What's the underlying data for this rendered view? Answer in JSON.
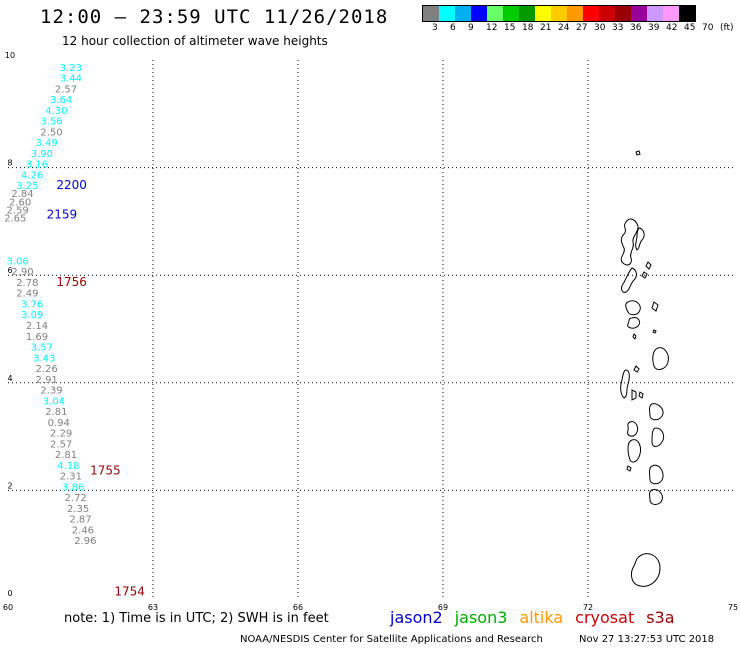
{
  "header": {
    "title": "12:00 – 23:59 UTC 11/26/2018",
    "subtitle": "12 hour collection of altimeter wave heights"
  },
  "legend": {
    "colors": [
      "#808080",
      "#00ffff",
      "#00b0f0",
      "#0000ff",
      "#66ff66",
      "#00cc00",
      "#009900",
      "#ffff00",
      "#ffcc00",
      "#ff9900",
      "#ff0000",
      "#cc0000",
      "#990000",
      "#990099",
      "#cc99ff",
      "#ff99ff",
      "#000000"
    ],
    "labels": [
      "3",
      "6",
      "9",
      "12",
      "15",
      "18",
      "21",
      "24",
      "27",
      "30",
      "33",
      "36",
      "39",
      "42",
      "45",
      "70",
      "(ft)"
    ]
  },
  "chart_data": {
    "type": "scatter",
    "xlim": [
      60,
      75
    ],
    "ylim": [
      0,
      10
    ],
    "xticks": [
      60,
      63,
      66,
      69,
      72,
      75
    ],
    "yticks": [
      0,
      2,
      4,
      6,
      8,
      10
    ],
    "grid": true,
    "track_upper": [
      {
        "x": 61.3,
        "y": 9.8,
        "v": "3.23",
        "c": "#00ffff"
      },
      {
        "x": 61.3,
        "y": 9.6,
        "v": "3.44",
        "c": "#00ffff"
      },
      {
        "x": 61.2,
        "y": 9.4,
        "v": "2.57",
        "c": "#808080"
      },
      {
        "x": 61.1,
        "y": 9.2,
        "v": "3.64",
        "c": "#00ffff"
      },
      {
        "x": 61.0,
        "y": 9.0,
        "v": "4.30",
        "c": "#00ffff"
      },
      {
        "x": 60.9,
        "y": 8.8,
        "v": "3.56",
        "c": "#00ffff"
      },
      {
        "x": 60.9,
        "y": 8.6,
        "v": "2.50",
        "c": "#808080"
      },
      {
        "x": 60.8,
        "y": 8.4,
        "v": "3.49",
        "c": "#00ffff"
      },
      {
        "x": 60.7,
        "y": 8.2,
        "v": "3.90",
        "c": "#00ffff"
      },
      {
        "x": 60.6,
        "y": 8.0,
        "v": "3.16",
        "c": "#00ffff"
      },
      {
        "x": 60.5,
        "y": 7.8,
        "v": "4.26",
        "c": "#00ffff"
      },
      {
        "x": 60.4,
        "y": 7.6,
        "v": "3.25",
        "c": "#00ffff"
      },
      {
        "x": 60.3,
        "y": 7.45,
        "v": "2.84",
        "c": "#808080"
      },
      {
        "x": 60.25,
        "y": 7.3,
        "v": "2.60",
        "c": "#808080"
      },
      {
        "x": 60.2,
        "y": 7.15,
        "v": "2.59",
        "c": "#808080"
      },
      {
        "x": 60.15,
        "y": 7.0,
        "v": "2.65",
        "c": "#808080"
      }
    ],
    "track_lower": [
      {
        "x": 60.2,
        "y": 6.2,
        "v": "3.06",
        "c": "#00ffff"
      },
      {
        "x": 60.3,
        "y": 6.0,
        "v": "2.90",
        "c": "#808080"
      },
      {
        "x": 60.4,
        "y": 5.8,
        "v": "2.78",
        "c": "#808080"
      },
      {
        "x": 60.4,
        "y": 5.6,
        "v": "2.49",
        "c": "#808080"
      },
      {
        "x": 60.5,
        "y": 5.4,
        "v": "3.76",
        "c": "#00ffff"
      },
      {
        "x": 60.5,
        "y": 5.2,
        "v": "3.09",
        "c": "#00ffff"
      },
      {
        "x": 60.6,
        "y": 5.0,
        "v": "2.14",
        "c": "#808080"
      },
      {
        "x": 60.6,
        "y": 4.8,
        "v": "1.69",
        "c": "#808080"
      },
      {
        "x": 60.7,
        "y": 4.6,
        "v": "3.57",
        "c": "#00ffff"
      },
      {
        "x": 60.75,
        "y": 4.4,
        "v": "3.43",
        "c": "#00ffff"
      },
      {
        "x": 60.8,
        "y": 4.2,
        "v": "2.26",
        "c": "#808080"
      },
      {
        "x": 60.8,
        "y": 4.0,
        "v": "2.91",
        "c": "#808080"
      },
      {
        "x": 60.9,
        "y": 3.8,
        "v": "2.39",
        "c": "#808080"
      },
      {
        "x": 60.95,
        "y": 3.6,
        "v": "3.04",
        "c": "#00ffff"
      },
      {
        "x": 61.0,
        "y": 3.4,
        "v": "2.81",
        "c": "#808080"
      },
      {
        "x": 61.05,
        "y": 3.2,
        "v": "0.94",
        "c": "#808080"
      },
      {
        "x": 61.1,
        "y": 3.0,
        "v": "2.29",
        "c": "#808080"
      },
      {
        "x": 61.1,
        "y": 2.8,
        "v": "2.57",
        "c": "#808080"
      },
      {
        "x": 61.2,
        "y": 2.6,
        "v": "2.81",
        "c": "#808080"
      },
      {
        "x": 61.25,
        "y": 2.4,
        "v": "4.18",
        "c": "#00ffff"
      },
      {
        "x": 61.3,
        "y": 2.2,
        "v": "2.31",
        "c": "#808080"
      },
      {
        "x": 61.35,
        "y": 2.0,
        "v": "3.86",
        "c": "#00ffff"
      },
      {
        "x": 61.4,
        "y": 1.8,
        "v": "2.72",
        "c": "#808080"
      },
      {
        "x": 61.45,
        "y": 1.6,
        "v": "2.35",
        "c": "#808080"
      },
      {
        "x": 61.5,
        "y": 1.4,
        "v": "2.87",
        "c": "#808080"
      },
      {
        "x": 61.55,
        "y": 1.2,
        "v": "2.46",
        "c": "#808080"
      },
      {
        "x": 61.6,
        "y": 1.0,
        "v": "2.96",
        "c": "#808080"
      }
    ],
    "time_labels": [
      {
        "x": 61.0,
        "y": 7.6,
        "t": "2200",
        "c": "#0000cc"
      },
      {
        "x": 60.8,
        "y": 7.05,
        "t": "2159",
        "c": "#0000cc"
      },
      {
        "x": 61.0,
        "y": 5.8,
        "t": "1756",
        "c": "#990000"
      },
      {
        "x": 61.7,
        "y": 2.3,
        "t": "1755",
        "c": "#990000"
      },
      {
        "x": 62.2,
        "y": 0.05,
        "t": "1754",
        "c": "#990000"
      }
    ]
  },
  "notes": {
    "note": "note: 1) Time is in UTC; 2) SWH is in feet"
  },
  "satellites": [
    {
      "name": "jason2",
      "color": "#0000cc"
    },
    {
      "name": "jason3",
      "color": "#00aa00"
    },
    {
      "name": "altika",
      "color": "#ff9900"
    },
    {
      "name": "cryosat",
      "color": "#cc0000"
    },
    {
      "name": "s3a",
      "color": "#990000"
    }
  ],
  "footer": {
    "credit": "NOAA/NESDIS Center for Satellite Applications and Research",
    "timestamp": "Nov 27 13:27:53 UTC 2018"
  }
}
